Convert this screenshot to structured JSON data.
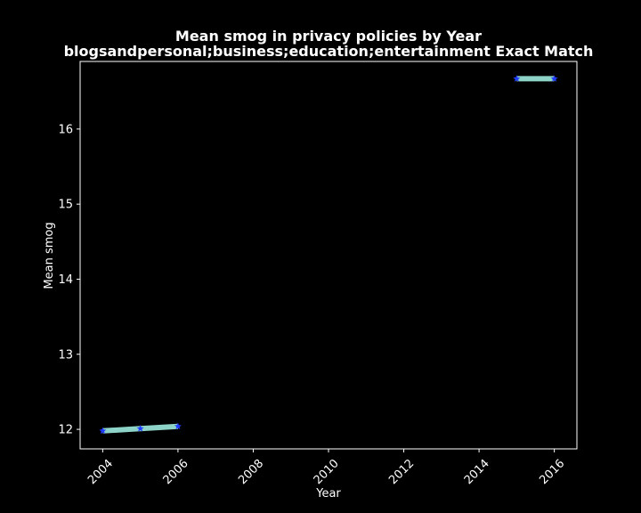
{
  "chart_data": {
    "type": "line",
    "title_lines": [
      "Mean smog in privacy policies by Year",
      "blogsandpersonal;business;education;entertainment Exact Match"
    ],
    "xlabel": "Year",
    "ylabel": "Mean smog",
    "xlim": [
      2003.4,
      2016.6
    ],
    "ylim": [
      11.74,
      16.9
    ],
    "xticks": [
      2004,
      2006,
      2008,
      2010,
      2012,
      2014,
      2016
    ],
    "yticks": [
      12,
      13,
      14,
      15,
      16
    ],
    "grid": false,
    "segments": [
      {
        "x": [
          2004,
          2005,
          2006
        ],
        "y": [
          11.98,
          12.01,
          12.04
        ]
      },
      {
        "x": [
          2015,
          2016
        ],
        "y": [
          16.67,
          16.67
        ]
      }
    ],
    "colors": {
      "background": "#000000",
      "axes": "#ffffff",
      "line": "#8dd3c7",
      "marker": "#1f3cff"
    }
  }
}
